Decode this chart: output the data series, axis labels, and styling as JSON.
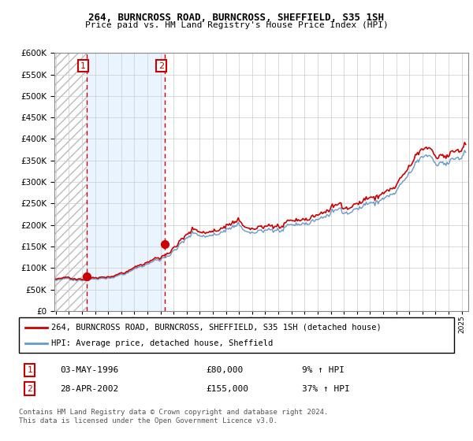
{
  "title": "264, BURNCROSS ROAD, BURNCROSS, SHEFFIELD, S35 1SH",
  "subtitle": "Price paid vs. HM Land Registry's House Price Index (HPI)",
  "legend_line1": "264, BURNCROSS ROAD, BURNCROSS, SHEFFIELD, S35 1SH (detached house)",
  "legend_line2": "HPI: Average price, detached house, Sheffield",
  "sale1_date": "03-MAY-1996",
  "sale1_price": 80000,
  "sale2_date": "28-APR-2002",
  "sale2_price": 155000,
  "sale1_pct": "9% ↑ HPI",
  "sale2_pct": "37% ↑ HPI",
  "footer": "Contains HM Land Registry data © Crown copyright and database right 2024.\nThis data is licensed under the Open Government Licence v3.0.",
  "red_color": "#cc0000",
  "blue_color": "#6699cc",
  "grid_color": "#cccccc",
  "ylim": [
    0,
    600000
  ],
  "xlim_start": 1993.9,
  "xlim_end": 2025.5,
  "sale1_year": 1996.35,
  "sale2_year": 2002.32,
  "hpi_anchors": [
    [
      1994.0,
      71000
    ],
    [
      1994.5,
      72000
    ],
    [
      1995.0,
      72500
    ],
    [
      1995.5,
      73500
    ],
    [
      1996.0,
      75000
    ],
    [
      1996.5,
      78000
    ],
    [
      1997.0,
      82000
    ],
    [
      1997.5,
      85000
    ],
    [
      1998.0,
      88000
    ],
    [
      1998.5,
      93000
    ],
    [
      1999.0,
      98000
    ],
    [
      1999.5,
      104000
    ],
    [
      2000.0,
      110000
    ],
    [
      2000.5,
      118000
    ],
    [
      2001.0,
      126000
    ],
    [
      2001.5,
      134000
    ],
    [
      2002.0,
      140000
    ],
    [
      2002.5,
      152000
    ],
    [
      2003.0,
      168000
    ],
    [
      2003.5,
      185000
    ],
    [
      2004.0,
      198000
    ],
    [
      2004.5,
      208000
    ],
    [
      2005.0,
      210000
    ],
    [
      2005.5,
      208000
    ],
    [
      2006.0,
      214000
    ],
    [
      2006.5,
      222000
    ],
    [
      2007.0,
      230000
    ],
    [
      2007.5,
      235000
    ],
    [
      2008.0,
      232000
    ],
    [
      2008.5,
      218000
    ],
    [
      2009.0,
      200000
    ],
    [
      2009.5,
      205000
    ],
    [
      2010.0,
      215000
    ],
    [
      2010.5,
      218000
    ],
    [
      2011.0,
      214000
    ],
    [
      2011.5,
      210000
    ],
    [
      2012.0,
      208000
    ],
    [
      2012.5,
      210000
    ],
    [
      2013.0,
      215000
    ],
    [
      2013.5,
      220000
    ],
    [
      2014.0,
      228000
    ],
    [
      2014.5,
      236000
    ],
    [
      2015.0,
      242000
    ],
    [
      2015.5,
      248000
    ],
    [
      2016.0,
      254000
    ],
    [
      2016.5,
      260000
    ],
    [
      2017.0,
      268000
    ],
    [
      2017.5,
      275000
    ],
    [
      2018.0,
      282000
    ],
    [
      2018.5,
      286000
    ],
    [
      2019.0,
      290000
    ],
    [
      2019.5,
      294000
    ],
    [
      2020.0,
      296000
    ],
    [
      2020.5,
      308000
    ],
    [
      2021.0,
      326000
    ],
    [
      2021.5,
      345000
    ],
    [
      2022.0,
      362000
    ],
    [
      2022.5,
      372000
    ],
    [
      2023.0,
      368000
    ],
    [
      2023.5,
      365000
    ],
    [
      2024.0,
      368000
    ],
    [
      2024.5,
      372000
    ],
    [
      2025.0,
      372000
    ]
  ]
}
